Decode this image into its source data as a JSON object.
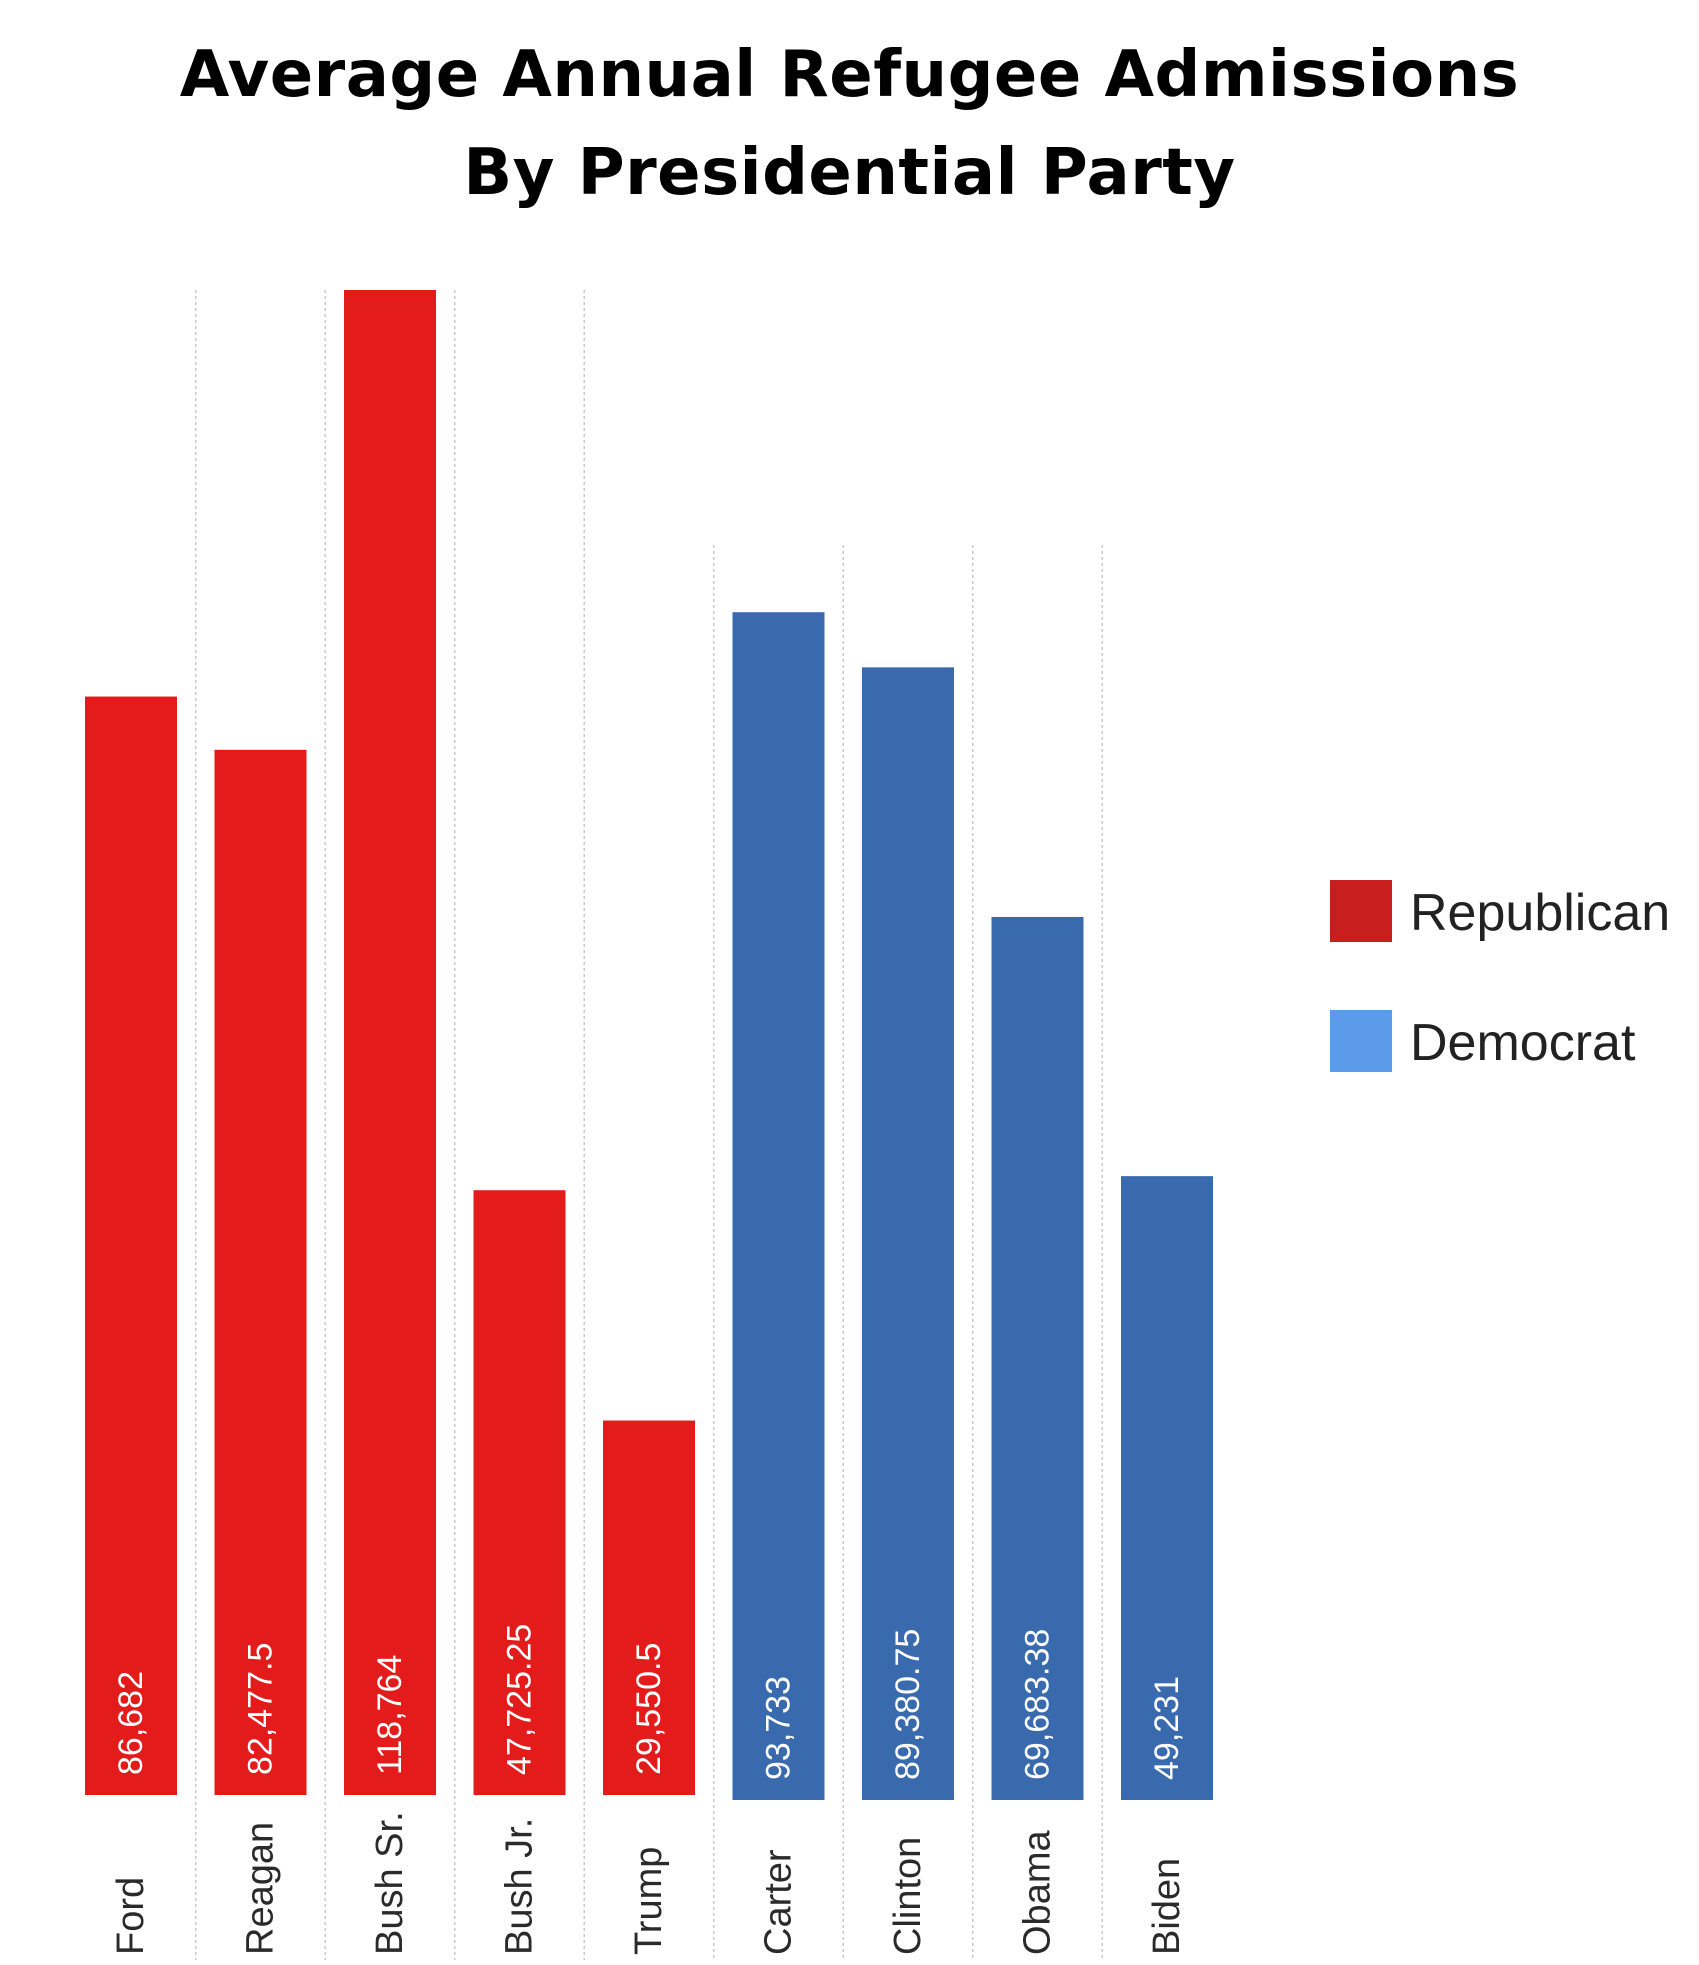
{
  "title_lines": [
    "Average Annual Refugee Admissions",
    "By Presidential Party"
  ],
  "chart_data": {
    "type": "bar",
    "categories": [
      "Ford",
      "Reagan",
      "Bush Sr.",
      "Bush Jr.",
      "Trump",
      "Carter",
      "Clinton",
      "Obama",
      "Biden"
    ],
    "series": [
      {
        "name": "Republican",
        "legend_color": "#c81e1e",
        "bar_color": "#e31b1b",
        "values": [
          86682,
          82477.5,
          118764,
          47725.25,
          29550.5,
          null,
          null,
          null,
          null
        ],
        "labels": [
          "86,682",
          "82,477.5",
          "118,764",
          "47,725.25",
          "29,550.5",
          null,
          null,
          null,
          null
        ]
      },
      {
        "name": "Democrat",
        "legend_color": "#5b9bea",
        "bar_color": "#396aae",
        "values": [
          null,
          null,
          null,
          null,
          null,
          93733,
          89380.75,
          69683.38,
          49231
        ],
        "labels": [
          null,
          null,
          null,
          null,
          null,
          "93,733",
          "89,380.75",
          "69,683.38",
          "49,231"
        ]
      }
    ],
    "title": "Average Annual Refugee Admissions By Presidential Party",
    "xlabel": "",
    "ylabel": "",
    "ylim": [
      0,
      118764
    ],
    "grid": "vertical",
    "legend": "right"
  }
}
